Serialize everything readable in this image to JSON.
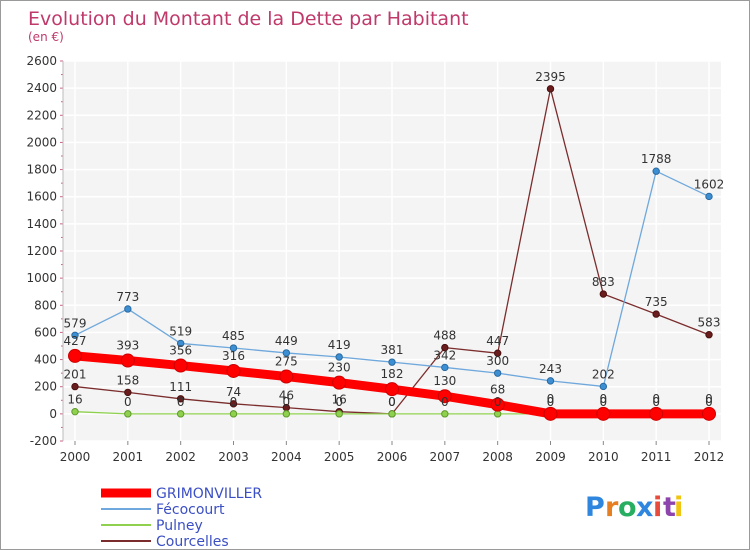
{
  "chart_data": {
    "type": "line",
    "title": "Evolution du Montant de la Dette par Habitant",
    "subtitle": "(en €)",
    "ylim": [
      -200,
      2600
    ],
    "yticks": [
      -200,
      0,
      200,
      400,
      600,
      800,
      1000,
      1200,
      1400,
      1600,
      1800,
      2000,
      2200,
      2400,
      2600
    ],
    "categories": [
      "2000",
      "2001",
      "2002",
      "2003",
      "2004",
      "2005",
      "2006",
      "2007",
      "2008",
      "2009",
      "2010",
      "2011",
      "2012"
    ],
    "grid": true,
    "legend_position": "bottom-left",
    "series": [
      {
        "name": "GRIMONVILLER",
        "color": "#ff0000",
        "values": [
          427,
          393,
          356,
          316,
          275,
          230,
          182,
          130,
          68,
          0,
          0,
          0,
          0
        ],
        "labels": [
          "427",
          "393",
          "356",
          "316",
          "275",
          "230",
          "182",
          "130",
          "68",
          "0",
          "0",
          "0",
          "0"
        ]
      },
      {
        "name": "Fécocourt",
        "color": "#6fa8dc",
        "values": [
          579,
          773,
          519,
          485,
          449,
          419,
          381,
          342,
          300,
          243,
          202,
          1788,
          1602
        ],
        "labels": [
          "579",
          "773",
          "519",
          "485",
          "449",
          "419",
          "381",
          "342",
          "300",
          "243",
          "202",
          "1788",
          "1602"
        ]
      },
      {
        "name": "Pulney",
        "color": "#8fd14f",
        "values": [
          16,
          0,
          0,
          0,
          0,
          0,
          0,
          0,
          0,
          0,
          0,
          0,
          0
        ],
        "labels": [
          "16",
          "0",
          "0",
          "0",
          "0",
          "0",
          "0",
          "0",
          "0",
          "0",
          "0",
          "0",
          "0"
        ]
      },
      {
        "name": "Courcelles",
        "color": "#7b2d2d",
        "values": [
          201,
          158,
          111,
          74,
          46,
          16,
          0,
          488,
          447,
          2395,
          883,
          735,
          583
        ],
        "labels": [
          "201",
          "158",
          "111",
          "74",
          "46",
          "16",
          "0",
          "488",
          "447",
          "2395",
          "883",
          "735",
          "583"
        ]
      }
    ]
  },
  "logo": {
    "letters": [
      {
        "ch": "P",
        "color": "#2e86de"
      },
      {
        "ch": "r",
        "color": "#e67e22"
      },
      {
        "ch": "o",
        "color": "#27ae60"
      },
      {
        "ch": "x",
        "color": "#2e86de"
      },
      {
        "ch": "i",
        "color": "#e74c3c"
      },
      {
        "ch": "t",
        "color": "#8e44ad"
      },
      {
        "ch": "i",
        "color": "#f1c40f"
      }
    ]
  }
}
